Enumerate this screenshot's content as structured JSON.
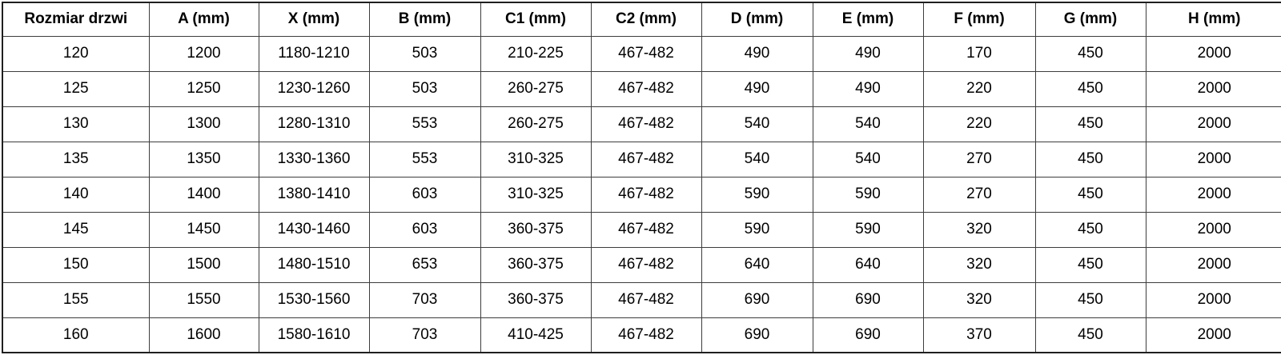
{
  "table": {
    "headers": [
      "Rozmiar drzwi",
      "A (mm)",
      "X (mm)",
      "B (mm)",
      "C1 (mm)",
      "C2 (mm)",
      "D (mm)",
      "E (mm)",
      "F (mm)",
      "G (mm)",
      "H (mm)"
    ],
    "rows": [
      [
        "120",
        "1200",
        "1180-1210",
        "503",
        "210-225",
        "467-482",
        "490",
        "490",
        "170",
        "450",
        "2000"
      ],
      [
        "125",
        "1250",
        "1230-1260",
        "503",
        "260-275",
        "467-482",
        "490",
        "490",
        "220",
        "450",
        "2000"
      ],
      [
        "130",
        "1300",
        "1280-1310",
        "553",
        "260-275",
        "467-482",
        "540",
        "540",
        "220",
        "450",
        "2000"
      ],
      [
        "135",
        "1350",
        "1330-1360",
        "553",
        "310-325",
        "467-482",
        "540",
        "540",
        "270",
        "450",
        "2000"
      ],
      [
        "140",
        "1400",
        "1380-1410",
        "603",
        "310-325",
        "467-482",
        "590",
        "590",
        "270",
        "450",
        "2000"
      ],
      [
        "145",
        "1450",
        "1430-1460",
        "603",
        "360-375",
        "467-482",
        "590",
        "590",
        "320",
        "450",
        "2000"
      ],
      [
        "150",
        "1500",
        "1480-1510",
        "653",
        "360-375",
        "467-482",
        "640",
        "640",
        "320",
        "450",
        "2000"
      ],
      [
        "155",
        "1550",
        "1530-1560",
        "703",
        "360-375",
        "467-482",
        "690",
        "690",
        "320",
        "450",
        "2000"
      ],
      [
        "160",
        "1600",
        "1580-1610",
        "703",
        "410-425",
        "467-482",
        "690",
        "690",
        "370",
        "450",
        "2000"
      ]
    ]
  },
  "colors": {
    "outer_border": "#1f1f1f",
    "inner_border": "#3d3d3d",
    "text": "#000000",
    "background": "#ffffff"
  }
}
